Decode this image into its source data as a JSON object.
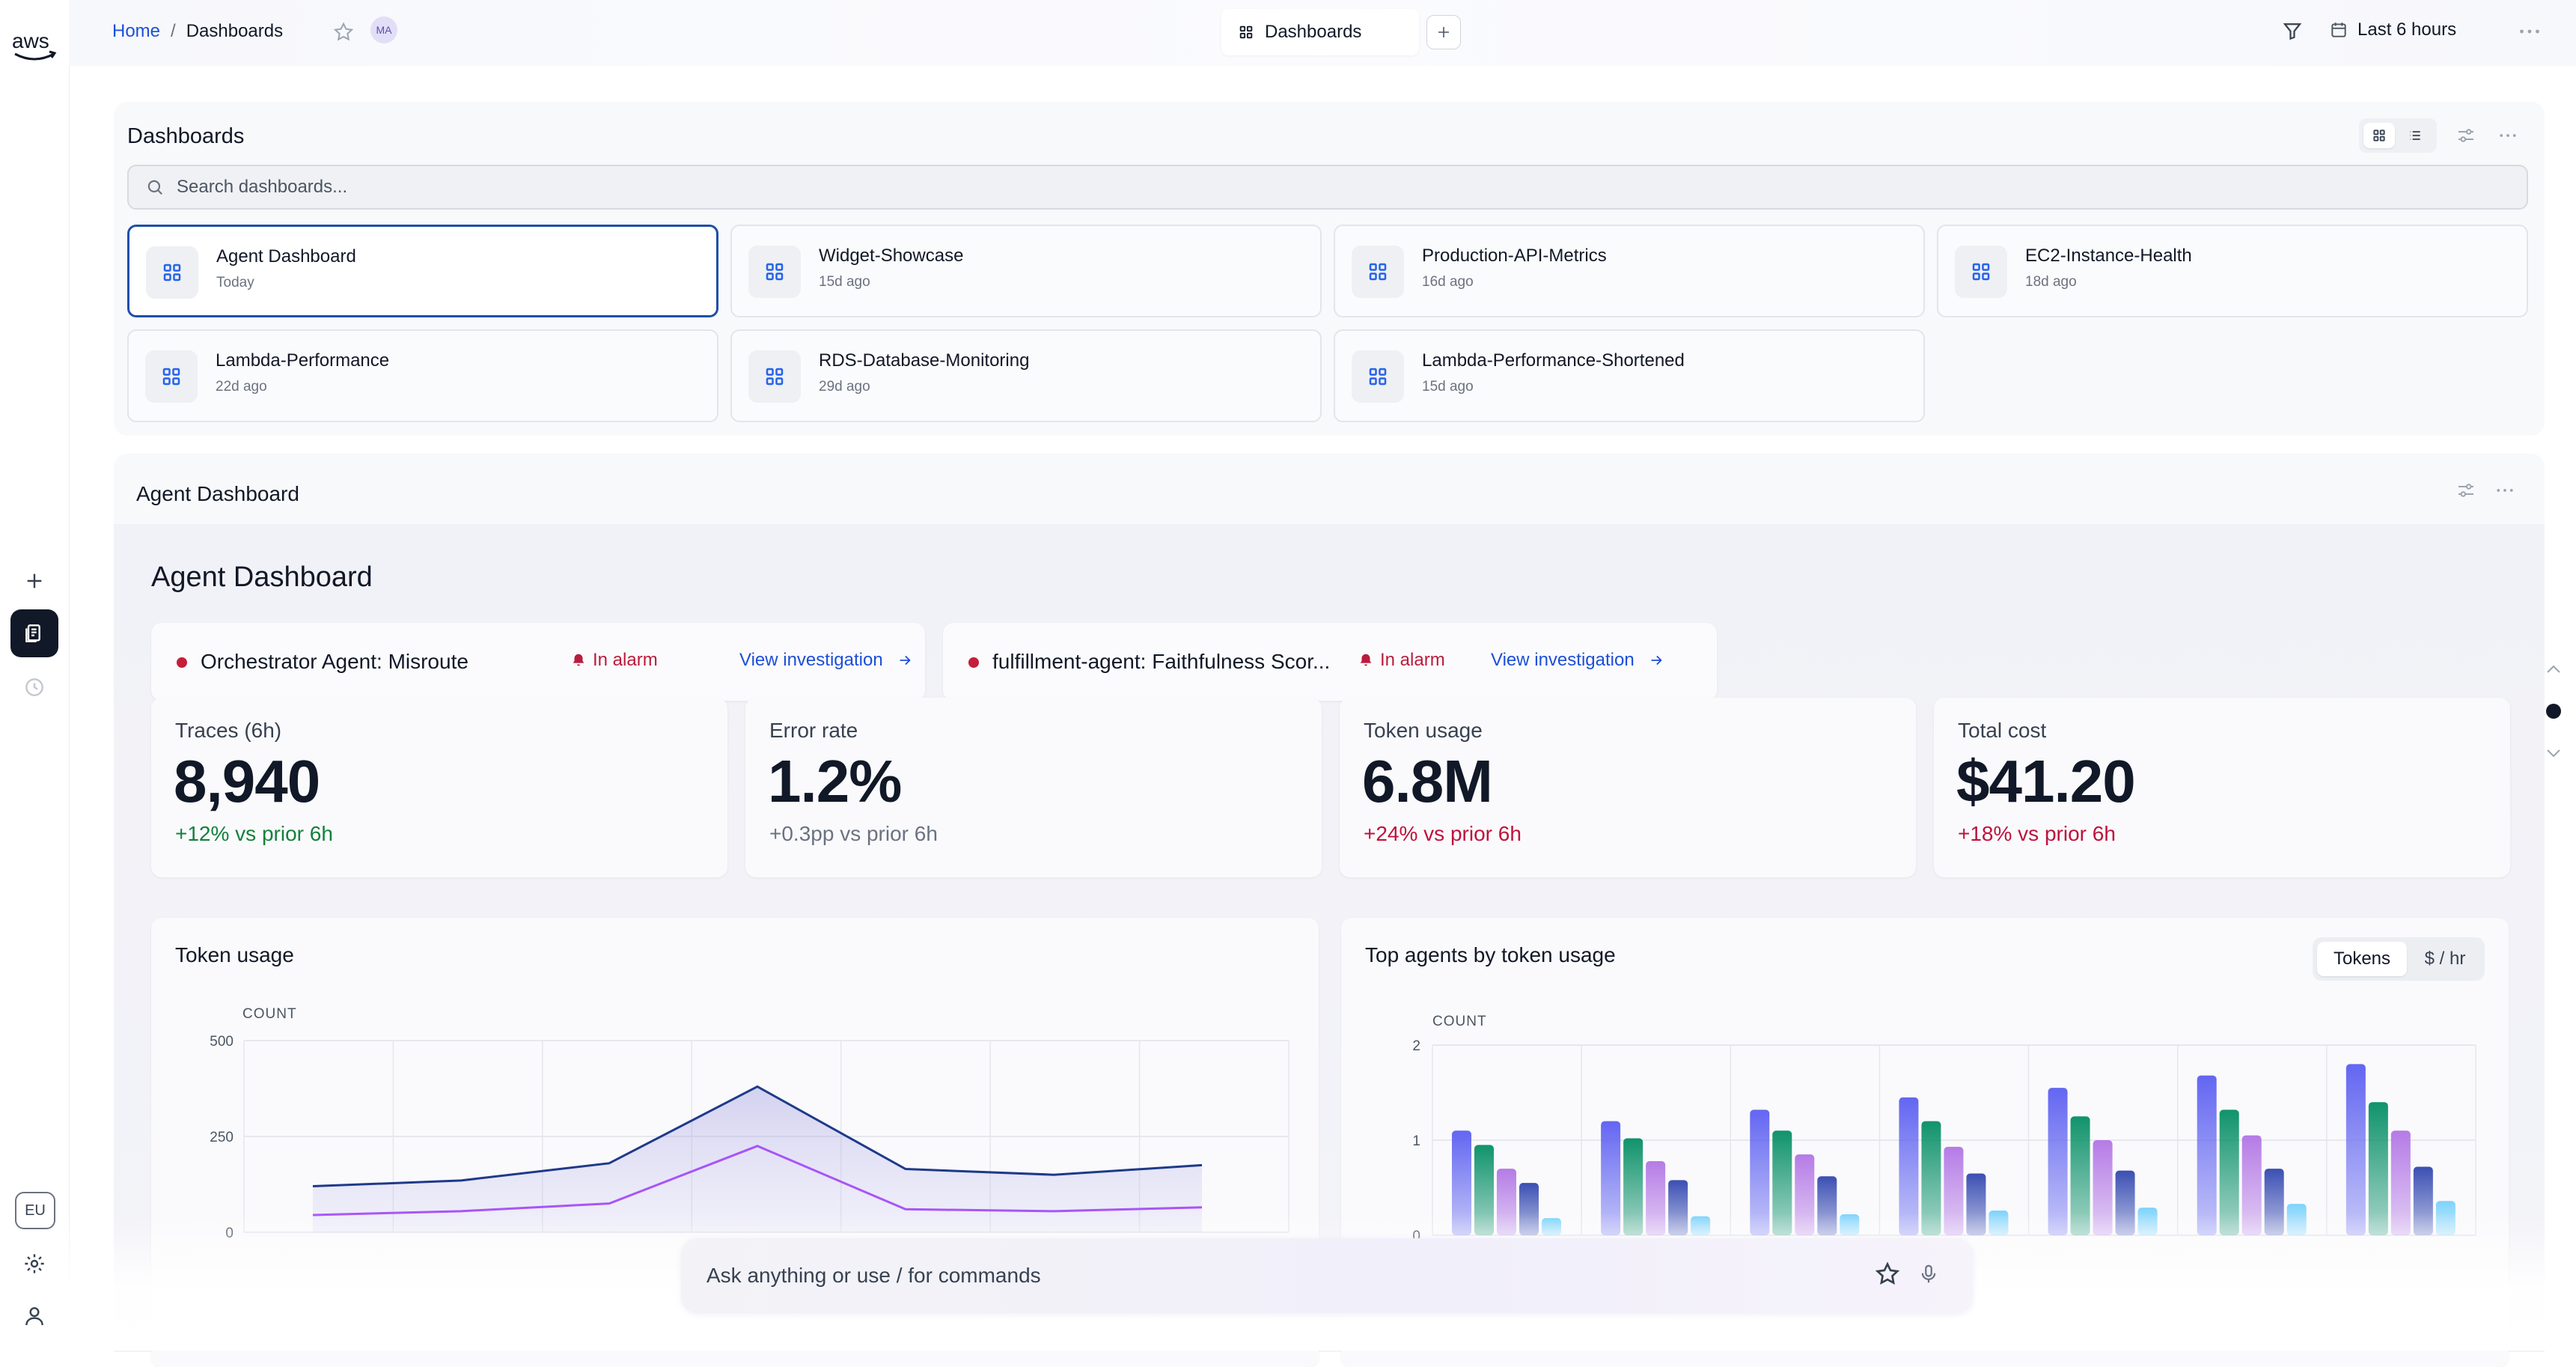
{
  "rail": {
    "brand_text": "aws",
    "items": [
      {
        "name": "plus-icon"
      },
      {
        "name": "dashboards-icon",
        "active": true
      },
      {
        "name": "history-icon"
      }
    ],
    "region": "EU",
    "bottom": [
      {
        "name": "settings-gear-icon"
      },
      {
        "name": "user-icon"
      }
    ]
  },
  "topbar": {
    "breadcrumb": {
      "home": "Home",
      "separator": "/",
      "current": "Dashboards"
    },
    "avatar_initials": "MA",
    "active_tab": "Dashboards",
    "time_range": "Last 6 hours"
  },
  "dashboards_panel": {
    "title": "Dashboards",
    "search_placeholder": "Search dashboards...",
    "cards": [
      {
        "name": "Agent Dashboard",
        "age": "Today",
        "selected": true
      },
      {
        "name": "Widget-Showcase",
        "age": "15d ago"
      },
      {
        "name": "Production-API-Metrics",
        "age": "16d ago"
      },
      {
        "name": "EC2-Instance-Health",
        "age": "18d ago"
      },
      {
        "name": "Lambda-Performance",
        "age": "22d ago"
      },
      {
        "name": "RDS-Database-Monitoring",
        "age": "29d ago"
      },
      {
        "name": "Lambda-Performance-Shortened",
        "age": "15d ago"
      }
    ]
  },
  "agent_panel": {
    "header": "Agent Dashboard",
    "title": "Agent Dashboard",
    "alarms": [
      {
        "name": "Orchestrator Agent: Misroute",
        "status": "In alarm",
        "link": "View investigation"
      },
      {
        "name": "fulfillment-agent: Faithfulness Scor...",
        "status": "In alarm",
        "link": "View investigation"
      }
    ],
    "kpis": [
      {
        "label": "Traces (6h)",
        "value": "8,940",
        "delta": "+12% vs prior 6h",
        "delta_color": "#15803d"
      },
      {
        "label": "Error rate",
        "value": "1.2%",
        "delta": "+0.3pp vs prior 6h",
        "delta_color": "#6b7280"
      },
      {
        "label": "Token usage",
        "value": "6.8M",
        "delta": "+24% vs prior 6h",
        "delta_color": "#be123c"
      },
      {
        "label": "Total cost",
        "value": "$41.20",
        "delta": "+18% vs prior 6h",
        "delta_color": "#be123c"
      }
    ],
    "token_chart_title": "Token usage",
    "top_agents_title": "Top agents by token usage",
    "toggle": {
      "active": "Tokens",
      "inactive": "$ / hr"
    }
  },
  "chart_data": [
    {
      "type": "area",
      "title": "Token usage",
      "ylabel": "COUNT",
      "yticks": [
        0,
        250,
        500
      ],
      "ylim": [
        0,
        500
      ],
      "series": [
        {
          "values": [
            120,
            135,
            180,
            380,
            165,
            150,
            175
          ],
          "color": "#1e3a8a"
        },
        {
          "values": [
            45,
            55,
            75,
            225,
            60,
            55,
            65
          ],
          "color": "#a855f7"
        }
      ]
    },
    {
      "type": "bar",
      "title": "Top agents by token usage",
      "ylabel": "COUNT",
      "yticks": [
        0,
        1,
        2
      ],
      "ylim": [
        0,
        2
      ],
      "series": [
        {
          "values": [
            1.1,
            1.2,
            1.32,
            1.45,
            1.55,
            1.68,
            1.8
          ],
          "color": "#6366f1"
        },
        {
          "values": [
            0.95,
            1.02,
            1.1,
            1.2,
            1.25,
            1.32,
            1.4
          ],
          "color": "#10936b"
        },
        {
          "values": [
            0.7,
            0.78,
            0.85,
            0.93,
            1.0,
            1.05,
            1.1
          ],
          "color": "#b57be6"
        },
        {
          "values": [
            0.55,
            0.58,
            0.62,
            0.65,
            0.68,
            0.7,
            0.72
          ],
          "color": "#3b4fb3"
        },
        {
          "values": [
            0.18,
            0.2,
            0.22,
            0.26,
            0.29,
            0.33,
            0.36
          ],
          "color": "#7dd3fc"
        }
      ]
    }
  ],
  "assistant": {
    "placeholder": "Ask anything or use / for commands"
  }
}
